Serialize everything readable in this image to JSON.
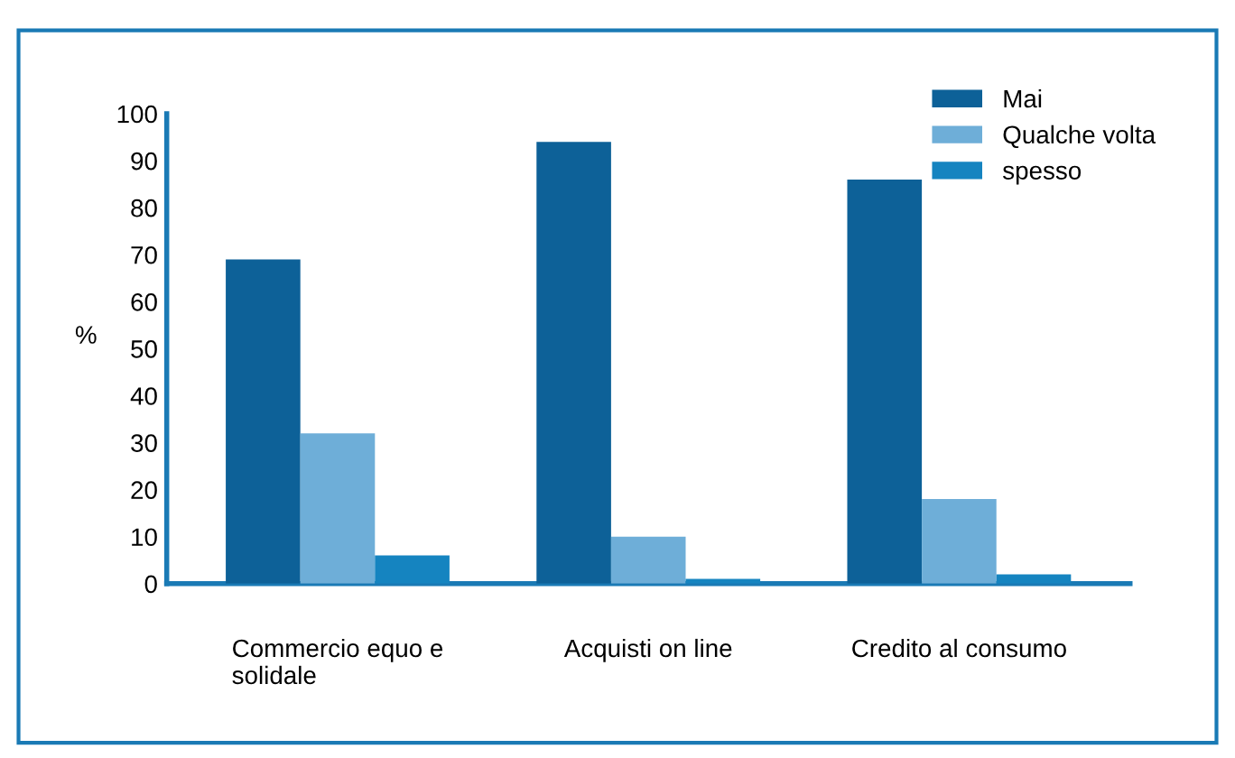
{
  "chart_data": {
    "type": "bar",
    "categories": [
      "Commercio equo e\nsolidale",
      "Acquisti on line",
      "Credito al consumo"
    ],
    "series": [
      {
        "name": "Mai",
        "color": "#0d6198",
        "values": [
          69,
          94,
          86
        ]
      },
      {
        "name": "Qualche volta",
        "color": "#6eaed8",
        "values": [
          32,
          10,
          18
        ]
      },
      {
        "name": "spesso",
        "color": "#1584c0",
        "values": [
          6,
          1,
          2
        ]
      }
    ],
    "ylabel": "%",
    "ylim": [
      0,
      100
    ],
    "yticks": [
      0,
      10,
      20,
      30,
      40,
      50,
      60,
      70,
      80,
      90,
      100
    ],
    "grid": false,
    "legend": "top right"
  }
}
